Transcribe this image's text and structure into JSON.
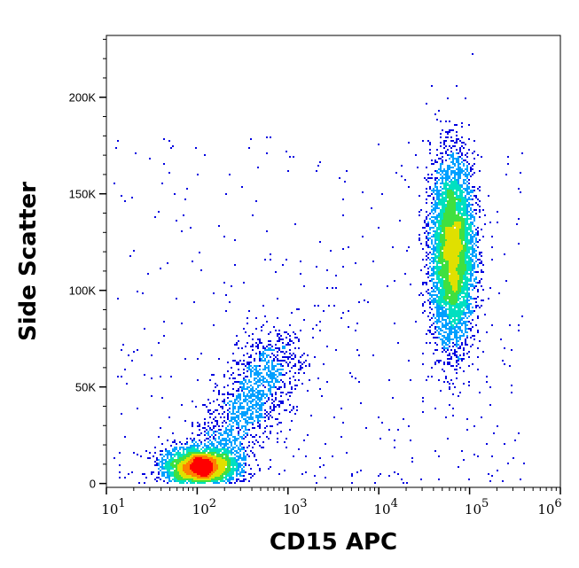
{
  "chart_data": {
    "type": "scatter",
    "subtype": "flow-cytometry density dot plot",
    "xlabel": "CD15 APC",
    "ylabel": "Side Scatter",
    "xscale": "log",
    "xlim": [
      10,
      1000000
    ],
    "ylim": [
      -2000,
      232000
    ],
    "x_ticks": [
      {
        "value": 10,
        "base": "10",
        "exp": "1"
      },
      {
        "value": 100,
        "base": "10",
        "exp": "2"
      },
      {
        "value": 1000,
        "base": "10",
        "exp": "3"
      },
      {
        "value": 10000,
        "base": "10",
        "exp": "4"
      },
      {
        "value": 100000,
        "base": "10",
        "exp": "5"
      },
      {
        "value": 1000000,
        "base": "10",
        "exp": "6"
      }
    ],
    "y_ticks": [
      {
        "value": 0,
        "label": "0"
      },
      {
        "value": 50000,
        "label": "50K"
      },
      {
        "value": 100000,
        "label": "100K"
      },
      {
        "value": 150000,
        "label": "150K"
      },
      {
        "value": 200000,
        "label": "200K"
      }
    ],
    "grid": false,
    "color_scale": [
      "#0000e0",
      "#00a0ff",
      "#00e0c0",
      "#40e040",
      "#e0e000",
      "#ff8000",
      "#ff0000"
    ],
    "populations": [
      {
        "name": "CD15-negative low SSC",
        "x_center": 110,
        "x_log_sd": 0.2,
        "y_center": 10000,
        "y_sd": 5000,
        "count": 3200
      },
      {
        "name": "CD15-low intermediate SSC",
        "x_from": 180,
        "x_to": 900,
        "y_from": 18000,
        "y_to": 70000,
        "count": 1300
      },
      {
        "name": "CD15-positive high SSC",
        "x_center": 65000,
        "x_log_sd": 0.12,
        "y_center": 120000,
        "y_sd": 24000,
        "count": 5200
      },
      {
        "name": "scattered events",
        "x_range": [
          12,
          400000
        ],
        "y_range": [
          0,
          180000
        ],
        "count": 450
      }
    ]
  }
}
